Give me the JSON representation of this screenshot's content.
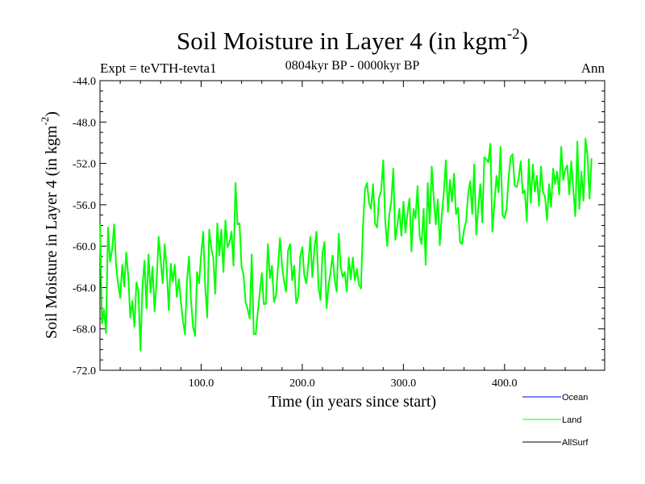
{
  "chart_data": {
    "type": "line",
    "title": "Soil Moisture in Layer 4 (in kgm",
    "title_sup": "-2",
    "title_close": ")",
    "subtitle": "0804kyr BP - 0000kyr BP",
    "left_label": "Expt = teVTH-tevta1",
    "right_label": "Ann",
    "xlabel": "Time (in years since start)",
    "ylabel": "Soil Moisture in Layer 4 (in kgm",
    "ylabel_sup": "-2",
    "ylabel_close": ")",
    "xlim": [
      0,
      499
    ],
    "ylim": [
      -72,
      -44
    ],
    "x_ticks": [
      100,
      200,
      300,
      400
    ],
    "x_tick_labels": [
      "100.0",
      "200.0",
      "300.0",
      "400.0"
    ],
    "y_ticks": [
      -72,
      -68,
      -64,
      -60,
      -56,
      -52,
      -48,
      -44
    ],
    "y_tick_labels": [
      "-72.0",
      "-68.0",
      "-64.0",
      "-60.0",
      "-56.0",
      "-52.0",
      "-48.0",
      "-44.0"
    ],
    "legend": [
      {
        "name": "Ocean",
        "color": "#0000ff"
      },
      {
        "name": "Land",
        "color": "#00ff00"
      },
      {
        "name": "AllSurf",
        "color": "#000000"
      }
    ],
    "series": [
      {
        "name": "Land",
        "color": "#00ff00",
        "x_start": 0,
        "x_step": 2,
        "values": [
          -57.8,
          -67.5,
          -66.1,
          -68.4,
          -58.2,
          -61.5,
          -60.3,
          -57.9,
          -62.0,
          -63.7,
          -65.0,
          -61.8,
          -63.9,
          -60.6,
          -62.9,
          -66.9,
          -65.3,
          -67.8,
          -63.5,
          -64.4,
          -70.1,
          -63.9,
          -61.4,
          -66.0,
          -60.8,
          -64.5,
          -62.0,
          -66.3,
          -63.3,
          -59.1,
          -61.4,
          -63.6,
          -59.8,
          -62.3,
          -66.2,
          -61.7,
          -63.4,
          -61.8,
          -64.9,
          -63.2,
          -65.4,
          -67.2,
          -68.5,
          -63.4,
          -61.0,
          -65.2,
          -67.8,
          -68.7,
          -62.5,
          -63.6,
          -60.8,
          -58.6,
          -63.9,
          -66.9,
          -58.4,
          -60.2,
          -61.1,
          -64.6,
          -57.8,
          -60.9,
          -58.4,
          -62.5,
          -57.5,
          -60.1,
          -59.7,
          -58.6,
          -61.9,
          -53.9,
          -57.9,
          -57.8,
          -62.0,
          -62.8,
          -65.4,
          -66.1,
          -67.0,
          -60.8,
          -68.5,
          -68.5,
          -66.4,
          -64.5,
          -62.6,
          -65.6,
          -65.6,
          -59.8,
          -63.1,
          -61.9,
          -65.4,
          -64.8,
          -62.0,
          -59.2,
          -61.9,
          -63.4,
          -64.4,
          -60.4,
          -59.8,
          -63.3,
          -61.9,
          -65.5,
          -64.9,
          -61.0,
          -60.1,
          -62.8,
          -63.6,
          -61.7,
          -59.1,
          -63.0,
          -60.2,
          -58.6,
          -63.9,
          -65.2,
          -60.6,
          -59.6,
          -66.0,
          -63.8,
          -62.5,
          -60.9,
          -63.2,
          -64.4,
          -58.8,
          -62.0,
          -63.0,
          -62.5,
          -64.4,
          -61.1,
          -63.2,
          -61.1,
          -63.3,
          -62.2,
          -63.7,
          -64.1,
          -58.1,
          -54.5,
          -53.9,
          -55.8,
          -56.4,
          -54.0,
          -57.8,
          -58.2,
          -55.3,
          -54.6,
          -51.7,
          -57.6,
          -60.0,
          -57.0,
          -55.7,
          -52.5,
          -59.4,
          -58.0,
          -56.4,
          -59.0,
          -55.7,
          -58.7,
          -56.8,
          -55.4,
          -60.5,
          -56.4,
          -57.3,
          -54.2,
          -59.0,
          -59.8,
          -56.4,
          -61.8,
          -53.9,
          -57.8,
          -52.3,
          -55.4,
          -57.9,
          -55.5,
          -59.9,
          -57.0,
          -54.8,
          -51.7,
          -56.7,
          -53.6,
          -55.7,
          -53.0,
          -56.9,
          -56.3,
          -59.6,
          -59.8,
          -58.4,
          -57.6,
          -55.0,
          -53.7,
          -56.9,
          -52.1,
          -58.9,
          -56.3,
          -54.0,
          -57.7,
          -51.4,
          -51.6,
          -51.9,
          -50.1,
          -58.6,
          -55.8,
          -53.2,
          -54.8,
          -50.4,
          -57.0,
          -57.3,
          -56.4,
          -53.4,
          -51.4,
          -51.1,
          -54.1,
          -54.3,
          -53.4,
          -51.8,
          -54.9,
          -54.6,
          -57.6,
          -51.6,
          -55.8,
          -52.1,
          -54.7,
          -53.2,
          -56.1,
          -52.3,
          -54.8,
          -55.2,
          -57.5,
          -54.0,
          -56.2,
          -52.5,
          -54.0,
          -52.8,
          -55.0,
          -50.4,
          -53.6,
          -52.6,
          -52.2,
          -55.0,
          -51.8,
          -54.6,
          -57.1,
          -49.9,
          -56.4,
          -52.8,
          -55.6,
          -49.6,
          -51.3,
          -55.4,
          -51.5
        ]
      }
    ]
  }
}
